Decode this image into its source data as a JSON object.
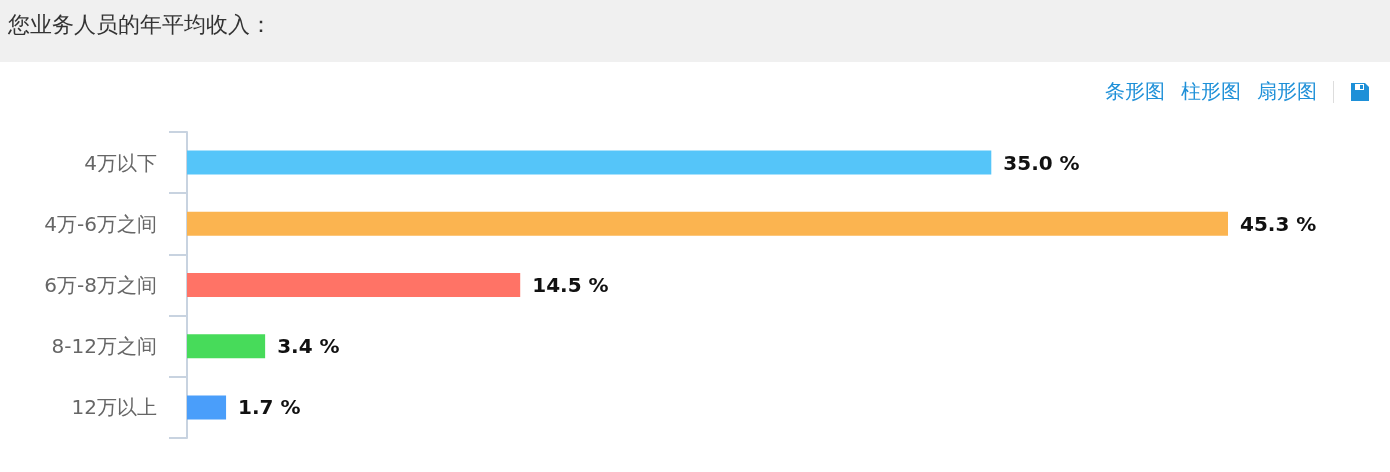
{
  "chart_data": {
    "type": "bar",
    "orientation": "horizontal",
    "title": "您业务人员的年平均收入：",
    "categories": [
      "4万以下",
      "4万-6万之间",
      "6万-8万之间",
      "8-12万之间",
      "12万以上"
    ],
    "values": [
      35.0,
      45.3,
      14.5,
      3.4,
      1.7
    ],
    "colors": [
      "#55c5f9",
      "#fbb450",
      "#ff7366",
      "#47db5a",
      "#4a9efa"
    ],
    "value_labels": [
      "35.0 %",
      "45.3 %",
      "14.5 %",
      "3.4 %",
      "1.7 %"
    ],
    "annotations": [
      "条形图",
      "柱形图",
      "扇形图"
    ],
    "tick_labels": "y"
  }
}
